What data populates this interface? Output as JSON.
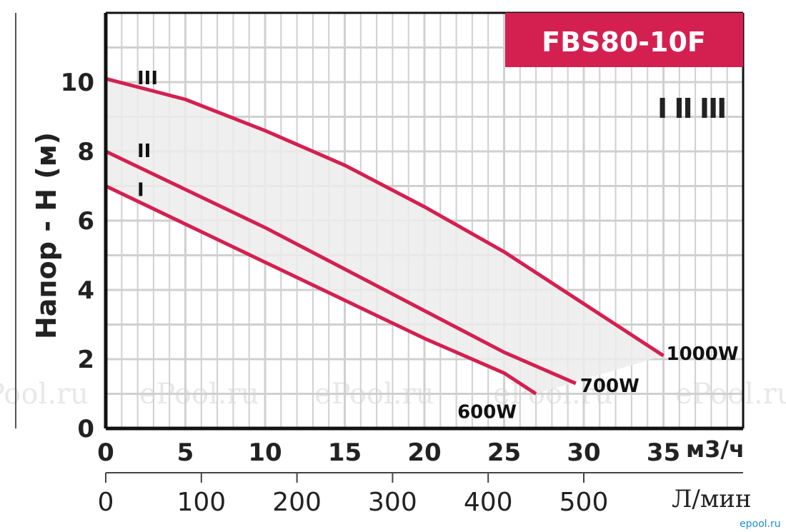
{
  "chart_data": {
    "type": "line",
    "title": "FBS80-10F",
    "ylabel": "Напор - H (м)",
    "x_unit_primary": "м3/ч",
    "x_unit_secondary": "Л/мин",
    "x_ticks_primary": [
      "0",
      "5",
      "10",
      "15",
      "20",
      "25",
      "30",
      "35"
    ],
    "x_ticks_secondary": [
      "0",
      "100",
      "200",
      "300",
      "400",
      "500"
    ],
    "y_ticks": [
      "0",
      "2",
      "4",
      "6",
      "8",
      "10"
    ],
    "xlim": [
      0,
      40
    ],
    "ylim": [
      0,
      12
    ],
    "grid": true,
    "legend_marks": "I II III",
    "series": [
      {
        "speed": "I",
        "power": "600W",
        "points": [
          [
            0,
            7.0
          ],
          [
            5,
            5.9
          ],
          [
            10,
            4.8
          ],
          [
            15,
            3.7
          ],
          [
            20,
            2.6
          ],
          [
            25,
            1.6
          ],
          [
            27,
            1.0
          ]
        ]
      },
      {
        "speed": "II",
        "power": "700W",
        "points": [
          [
            0,
            8.0
          ],
          [
            5,
            6.9
          ],
          [
            10,
            5.8
          ],
          [
            15,
            4.6
          ],
          [
            20,
            3.4
          ],
          [
            25,
            2.2
          ],
          [
            29.5,
            1.3
          ]
        ]
      },
      {
        "speed": "III",
        "power": "1000W",
        "points": [
          [
            0,
            10.1
          ],
          [
            5,
            9.5
          ],
          [
            10,
            8.6
          ],
          [
            15,
            7.6
          ],
          [
            20,
            6.4
          ],
          [
            25,
            5.1
          ],
          [
            30,
            3.6
          ],
          [
            35,
            2.1
          ]
        ]
      }
    ]
  },
  "watermarks": [
    "Pool.ru",
    "ePool.ru",
    "ePool.ru",
    "ePool.ru",
    "ePool.ru"
  ],
  "footer_mark": "epool.ru"
}
